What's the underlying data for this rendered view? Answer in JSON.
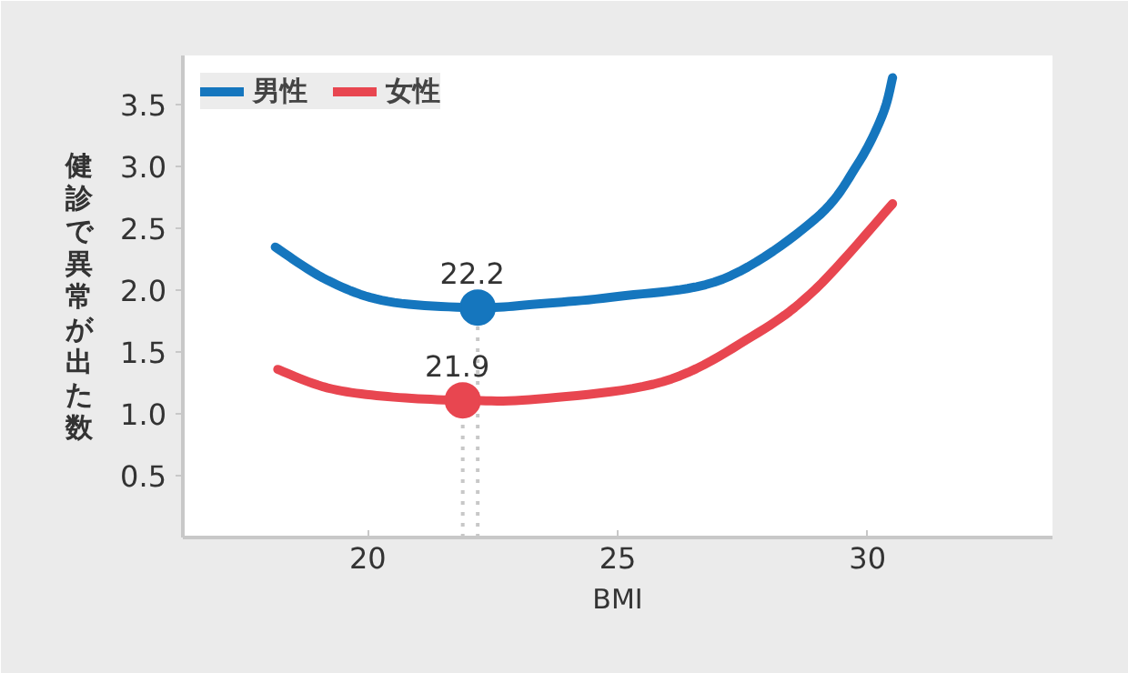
{
  "chart_data": {
    "type": "line",
    "xlabel": "BMI",
    "ylabel": "健診で異常が出た数",
    "xlim": [
      16.3,
      33.7
    ],
    "xticks": [
      20,
      25,
      30
    ],
    "ylim": [
      0,
      3.9
    ],
    "yticks": [
      0.5,
      {
        "value": 1,
        "label": "1.0"
      },
      1.5,
      {
        "value": 2,
        "label": "2.0"
      },
      2.5,
      {
        "value": 3,
        "label": "3.0"
      },
      3.5
    ],
    "grid": false,
    "legend": "top left",
    "series": [
      {
        "name": "男性",
        "color": "#1576be",
        "x": [
          18.15,
          19.2,
          20.4,
          22.2,
          23.4,
          25.0,
          27.1,
          28.96,
          29.8,
          30.3,
          30.5
        ],
        "values": [
          2.35,
          2.08,
          1.91,
          1.86,
          1.89,
          1.95,
          2.09,
          2.58,
          3.02,
          3.42,
          3.72
        ]
      },
      {
        "name": "女性",
        "color": "#e84650",
        "x": [
          18.2,
          19.2,
          20.4,
          21.9,
          23.4,
          25.9,
          27.7,
          28.96,
          30.5
        ],
        "values": [
          1.36,
          1.21,
          1.14,
          1.11,
          1.12,
          1.26,
          1.63,
          2.01,
          2.7
        ]
      },
      {
        "type": "scatter",
        "color": "#1576be",
        "x": [
          22.2
        ],
        "values": [
          1.86
        ]
      },
      {
        "type": "scatter",
        "color": "#e84650",
        "x": [
          21.9
        ],
        "values": [
          1.11
        ]
      }
    ],
    "annotations": [
      {
        "text": "22.2",
        "x": 22.2,
        "y": 1.86
      },
      {
        "text": "21.9",
        "x": 21.9,
        "y": 1.11
      }
    ],
    "ref_lines": [
      {
        "axis": "x",
        "value": 22.2,
        "color": "#c8c8c8",
        "line_style": "dotted"
      },
      {
        "axis": "x",
        "value": 21.9,
        "color": "#c8c8c8",
        "line_style": "dotted"
      }
    ]
  }
}
